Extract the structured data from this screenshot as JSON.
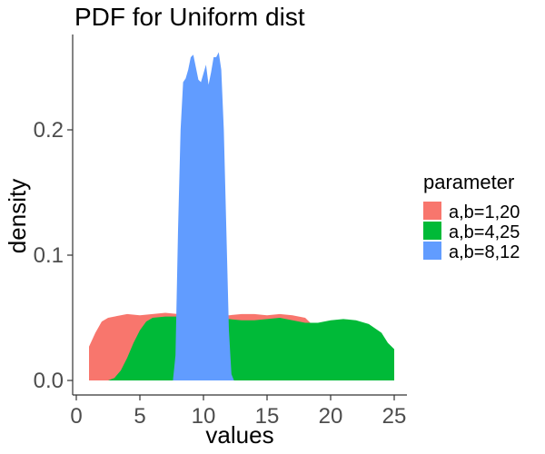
{
  "chart_data": {
    "type": "area",
    "title": "PDF for Uniform dist",
    "xlabel": "values",
    "ylabel": "density",
    "xlim": [
      0,
      25
    ],
    "ylim": [
      0,
      0.27
    ],
    "x_ticks": [
      0,
      5,
      10,
      15,
      20,
      25
    ],
    "x_tick_labels": [
      "0",
      "5",
      "10",
      "15",
      "20",
      "25"
    ],
    "y_ticks": [
      0.0,
      0.1,
      0.2
    ],
    "y_tick_labels": [
      "0.0",
      "0.1",
      "0.2"
    ],
    "grid": false,
    "legend_position": "right",
    "legend_title": "parameter",
    "series": [
      {
        "name": "a,b=1,20",
        "color": "#F8766D",
        "x": [
          1,
          1.5,
          2,
          2.5,
          3,
          4,
          5,
          6,
          7,
          8,
          9,
          10,
          11,
          12,
          13,
          14,
          15,
          16,
          17,
          18,
          18.5,
          19,
          19.5,
          20
        ],
        "y": [
          0.027,
          0.038,
          0.047,
          0.05,
          0.051,
          0.053,
          0.052,
          0.053,
          0.054,
          0.053,
          0.052,
          0.053,
          0.052,
          0.052,
          0.053,
          0.053,
          0.052,
          0.053,
          0.052,
          0.05,
          0.045,
          0.03,
          0.015,
          0.005
        ]
      },
      {
        "name": "a,b=4,25",
        "color": "#00BA38",
        "x": [
          2.5,
          3,
          3.5,
          4,
          4.5,
          5,
          5.5,
          6,
          7,
          8,
          9,
          10,
          11,
          12,
          13,
          14,
          15,
          16,
          17,
          18,
          19,
          20,
          21,
          22,
          23,
          24,
          24.5,
          25
        ],
        "y": [
          0.0,
          0.002,
          0.008,
          0.018,
          0.03,
          0.04,
          0.047,
          0.05,
          0.051,
          0.051,
          0.049,
          0.048,
          0.049,
          0.049,
          0.048,
          0.048,
          0.049,
          0.05,
          0.048,
          0.046,
          0.046,
          0.048,
          0.049,
          0.048,
          0.045,
          0.038,
          0.03,
          0.025
        ]
      },
      {
        "name": "a,b=8,12",
        "color": "#619CFF",
        "x": [
          7.6,
          7.8,
          8.0,
          8.2,
          8.4,
          8.6,
          8.8,
          9.0,
          9.2,
          9.4,
          9.6,
          9.8,
          10.0,
          10.2,
          10.4,
          10.6,
          10.8,
          11.0,
          11.2,
          11.4,
          11.6,
          11.8,
          12.0,
          12.2,
          12.4
        ],
        "y": [
          0.0,
          0.02,
          0.12,
          0.2,
          0.238,
          0.241,
          0.248,
          0.258,
          0.26,
          0.25,
          0.24,
          0.238,
          0.245,
          0.252,
          0.236,
          0.246,
          0.258,
          0.258,
          0.262,
          0.248,
          0.2,
          0.12,
          0.04,
          0.005,
          0.0
        ]
      }
    ]
  }
}
